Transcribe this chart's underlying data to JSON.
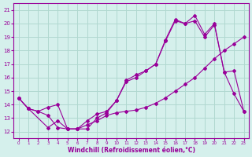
{
  "xlabel": "Windchill (Refroidissement éolien,°C)",
  "background_color": "#d5f0ec",
  "grid_color": "#b0d8d0",
  "line_color": "#990099",
  "xlim": [
    -0.5,
    23.5
  ],
  "ylim": [
    11.5,
    21.5
  ],
  "yticks": [
    12,
    13,
    14,
    15,
    16,
    17,
    18,
    19,
    20,
    21
  ],
  "xticks": [
    0,
    1,
    2,
    3,
    4,
    5,
    6,
    7,
    8,
    9,
    10,
    11,
    12,
    13,
    14,
    15,
    16,
    17,
    18,
    19,
    20,
    21,
    22,
    23
  ],
  "s1_x": [
    0,
    1,
    2,
    3,
    4,
    5,
    6,
    7,
    8,
    9,
    10,
    11,
    12,
    13,
    14,
    15,
    16,
    17,
    18,
    19,
    20,
    21,
    22,
    23
  ],
  "s1_y": [
    14.5,
    13.7,
    13.5,
    13.8,
    14.0,
    12.2,
    12.2,
    12.5,
    12.8,
    13.2,
    13.4,
    13.5,
    13.6,
    13.8,
    14.1,
    14.5,
    15.0,
    15.5,
    16.0,
    16.7,
    17.4,
    18.0,
    18.5,
    19.0
  ],
  "s2_x": [
    0,
    1,
    2,
    3,
    4,
    5,
    6,
    7,
    8,
    9,
    10,
    11,
    12,
    13,
    14,
    15,
    16,
    17,
    18,
    19,
    20,
    21,
    22,
    23
  ],
  "s2_y": [
    14.5,
    13.7,
    13.5,
    13.2,
    12.3,
    12.2,
    12.2,
    12.2,
    13.0,
    13.4,
    14.3,
    15.8,
    16.2,
    16.5,
    17.0,
    18.7,
    20.2,
    20.0,
    20.2,
    19.0,
    19.9,
    16.4,
    14.8,
    13.5
  ],
  "s3_x": [
    0,
    1,
    3,
    4,
    5,
    6,
    7,
    8,
    9,
    10,
    11,
    12,
    13,
    14,
    15,
    16,
    17,
    18,
    19,
    20,
    21,
    22,
    23
  ],
  "s3_y": [
    14.5,
    13.7,
    12.3,
    12.8,
    12.2,
    12.2,
    12.8,
    13.3,
    13.5,
    14.3,
    15.7,
    16.0,
    16.5,
    17.0,
    18.8,
    20.3,
    20.0,
    20.6,
    19.2,
    20.0,
    16.4,
    16.5,
    13.5
  ]
}
